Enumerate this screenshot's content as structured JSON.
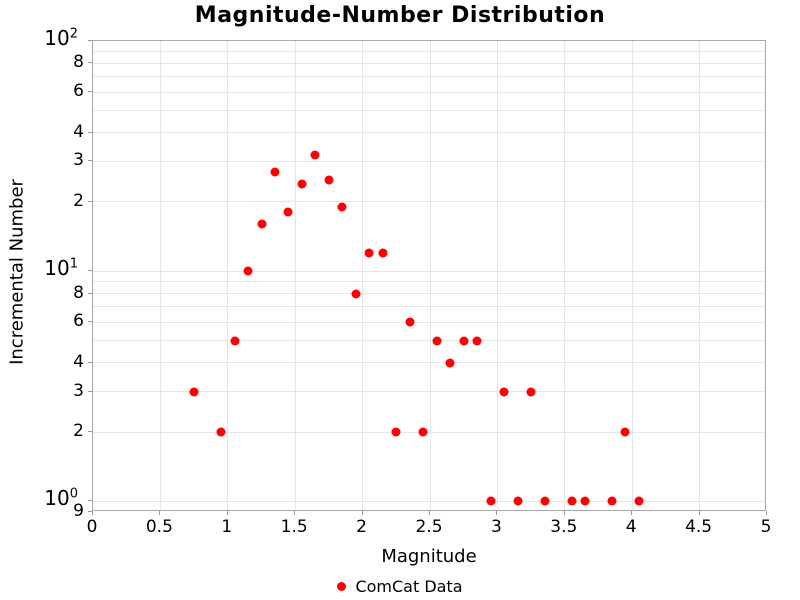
{
  "title": "Magnitude-Number Distribution",
  "colors": {
    "marker": "#ff0000",
    "grid": "#e6e6e6",
    "border": "#a9a9a9",
    "text": "#000000",
    "background": "#ffffff"
  },
  "chart_data": {
    "type": "scatter",
    "title": "Magnitude-Number Distribution",
    "xlabel": "Magnitude",
    "ylabel": "Incremental Number",
    "x_scale": "linear",
    "y_scale": "log",
    "xlim": [
      0,
      5
    ],
    "ylim": [
      0.9,
      100
    ],
    "grid": true,
    "legend_position": "bottom-center",
    "x_axis": {
      "label": "Magnitude",
      "ticks": [
        {
          "value": 0,
          "label": "0"
        },
        {
          "value": 0.5,
          "label": "0.5"
        },
        {
          "value": 1,
          "label": "1"
        },
        {
          "value": 1.5,
          "label": "1.5"
        },
        {
          "value": 2,
          "label": "2"
        },
        {
          "value": 2.5,
          "label": "2.5"
        },
        {
          "value": 3,
          "label": "3"
        },
        {
          "value": 3.5,
          "label": "3.5"
        },
        {
          "value": 4,
          "label": "4"
        },
        {
          "value": 4.5,
          "label": "4.5"
        },
        {
          "value": 5,
          "label": "5"
        }
      ]
    },
    "y_axis": {
      "label": "Incremental Number",
      "decade_ticks": [
        {
          "value": 100,
          "mantissa": "10",
          "exponent": "2"
        },
        {
          "value": 10,
          "mantissa": "10",
          "exponent": "1"
        },
        {
          "value": 1,
          "mantissa": "10",
          "exponent": "0"
        }
      ],
      "minor_tick_labels": [
        {
          "value": 80,
          "label": "8"
        },
        {
          "value": 60,
          "label": "6"
        },
        {
          "value": 40,
          "label": "4"
        },
        {
          "value": 30,
          "label": "3"
        },
        {
          "value": 20,
          "label": "2"
        },
        {
          "value": 8,
          "label": "8"
        },
        {
          "value": 6,
          "label": "6"
        },
        {
          "value": 4,
          "label": "4"
        },
        {
          "value": 3,
          "label": "3"
        },
        {
          "value": 2,
          "label": "2"
        },
        {
          "value": 0.9,
          "label": "9"
        }
      ]
    },
    "series": [
      {
        "name": "ComCat Data",
        "marker": "circle",
        "color": "#ff0000",
        "x": [
          0.75,
          0.95,
          1.05,
          1.15,
          1.25,
          1.35,
          1.45,
          1.55,
          1.65,
          1.75,
          1.85,
          1.95,
          2.05,
          2.15,
          2.25,
          2.35,
          2.45,
          2.55,
          2.65,
          2.75,
          2.85,
          2.95,
          3.05,
          3.15,
          3.25,
          3.35,
          3.55,
          3.65,
          3.85,
          3.95,
          4.05
        ],
        "y": [
          3,
          2,
          5,
          10,
          16,
          27,
          18,
          24,
          32,
          25,
          19,
          8,
          12,
          12,
          2,
          6,
          2,
          5,
          4,
          5,
          5,
          1,
          3,
          1,
          3,
          1,
          1,
          1,
          1,
          2,
          1
        ]
      }
    ]
  }
}
